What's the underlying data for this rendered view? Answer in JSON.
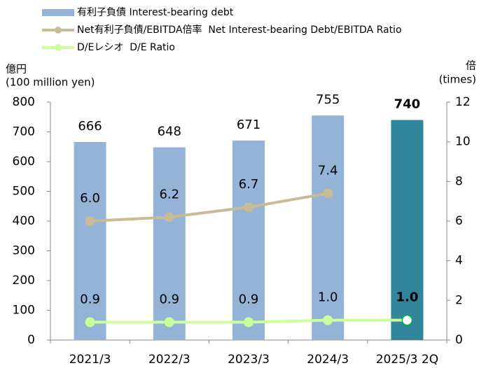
{
  "chart_data": {
    "type": "bar",
    "categories": [
      "2021/3",
      "2022/3",
      "2023/3",
      "2024/3",
      "2025/3 2Q"
    ],
    "series": [
      {
        "name": "有利子負債 Interest-bearing debt",
        "type": "bar",
        "color": "#95b3d7",
        "colors": [
          "#95b3d7",
          "#95b3d7",
          "#95b3d7",
          "#95b3d7",
          "#31859c"
        ],
        "values": [
          666,
          648,
          671,
          755,
          740
        ]
      },
      {
        "name": "Net有利子負債/EBITDA倍率  Net Interest-bearing Debt/EBITDA Ratio",
        "type": "line",
        "axis": "y2",
        "color": "#c8bc98",
        "values": [
          6.0,
          6.2,
          6.7,
          7.4,
          null
        ],
        "value_labels": [
          "6.0",
          "6.2",
          "6.7",
          "7.4",
          null
        ]
      },
      {
        "name": "D/Eレシオ  D/E Ratio",
        "type": "line",
        "axis": "y2",
        "color": "#ccff99",
        "values": [
          0.9,
          0.9,
          0.9,
          1.0,
          1.0
        ],
        "value_labels": [
          "0.9",
          "0.9",
          "0.9",
          "1.0",
          "1.0"
        ]
      }
    ],
    "ylim": [
      0,
      800
    ],
    "yticks": [
      0,
      100,
      200,
      300,
      400,
      500,
      600,
      700,
      800
    ],
    "y2lim": [
      0,
      12
    ],
    "y2ticks": [
      0,
      2,
      4,
      6,
      8,
      10,
      12
    ],
    "ylabel": "億円",
    "ylabel_unit": "(100 million yen)",
    "y2label": "倍",
    "y2label_unit": "(times)"
  }
}
